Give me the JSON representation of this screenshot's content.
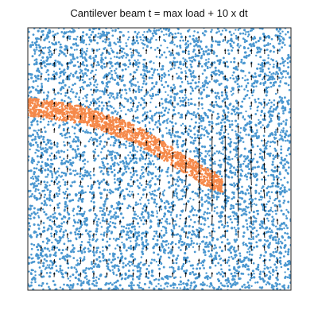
{
  "chart_data": {
    "type": "scatter",
    "title": "Cantilever beam t = max load + 10 x dt",
    "xlabel": "",
    "ylabel": "",
    "xlim": [
      0,
      1
    ],
    "ylim": [
      0,
      1
    ],
    "grid": false,
    "axes_ticks": false,
    "series": [
      {
        "role": "medium-particles",
        "color": "#4a97d0",
        "region": "entire domain"
      },
      {
        "role": "beam-particles",
        "color": "#f5894a",
        "centerline": {
          "x": [
            0.0,
            0.2,
            0.4,
            0.55,
            0.66,
            0.74
          ],
          "y": [
            0.7,
            0.67,
            0.6,
            0.51,
            0.44,
            0.4
          ]
        },
        "thickness": 0.07
      }
    ],
    "vector_field": {
      "color": "#000000",
      "grid_x": [
        0.05,
        0.1,
        0.15,
        0.2,
        0.25,
        0.3,
        0.35,
        0.4,
        0.45,
        0.5,
        0.55,
        0.6,
        0.65,
        0.7,
        0.75,
        0.8,
        0.85,
        0.9,
        0.95
      ],
      "grid_y": [
        0.05,
        0.1,
        0.15,
        0.2,
        0.25,
        0.3,
        0.35,
        0.4,
        0.45,
        0.5,
        0.55,
        0.6,
        0.65,
        0.7,
        0.75,
        0.8,
        0.85,
        0.9,
        0.95
      ],
      "direction": "predominantly upward, converging toward beam tip",
      "focus_point": [
        0.74,
        0.4
      ]
    }
  }
}
